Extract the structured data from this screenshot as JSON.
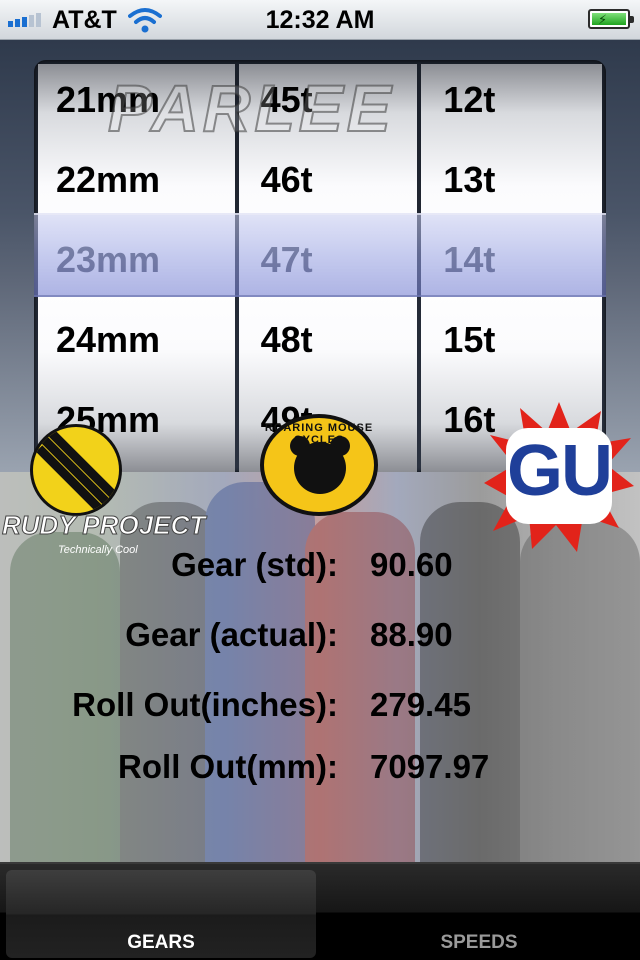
{
  "status_bar": {
    "carrier": "AT&T",
    "time": "12:32 AM"
  },
  "picker": {
    "brand_watermark": "PARLEE",
    "columns": [
      {
        "name": "tire",
        "rows": [
          "21mm",
          "22mm",
          "23mm",
          "24mm",
          "25mm"
        ],
        "selected": "23mm"
      },
      {
        "name": "chainring",
        "rows": [
          "45t",
          "46t",
          "47t",
          "48t",
          "49t"
        ],
        "selected": "47t"
      },
      {
        "name": "cog",
        "rows": [
          "12t",
          "13t",
          "14t",
          "15t",
          "16t"
        ],
        "selected": "14t"
      }
    ]
  },
  "results": [
    {
      "label": "Gear (std):",
      "value": "90.60"
    },
    {
      "label": "Gear (actual):",
      "value": "88.90"
    },
    {
      "label": "Roll Out(inches):",
      "value": "279.45"
    },
    {
      "label": "Roll Out(mm):",
      "value": "7097.97"
    }
  ],
  "sponsors": {
    "rudy_project": "RUDY PROJECT",
    "rudy_tagline": "Technically Cool",
    "roaring_mouse": "ROARING MOUSE CYCLES",
    "gu": "GU"
  },
  "tabs": [
    {
      "label": "GEARS",
      "selected": true
    },
    {
      "label": "SPEEDS",
      "selected": false
    }
  ],
  "colors": {
    "selection_overlay": "#8f9ad8",
    "tab_active_text": "#ffffff",
    "tab_inactive_text": "#9a9a9a",
    "wifi": "#1a6fd1",
    "battery": "#1fa31f"
  }
}
